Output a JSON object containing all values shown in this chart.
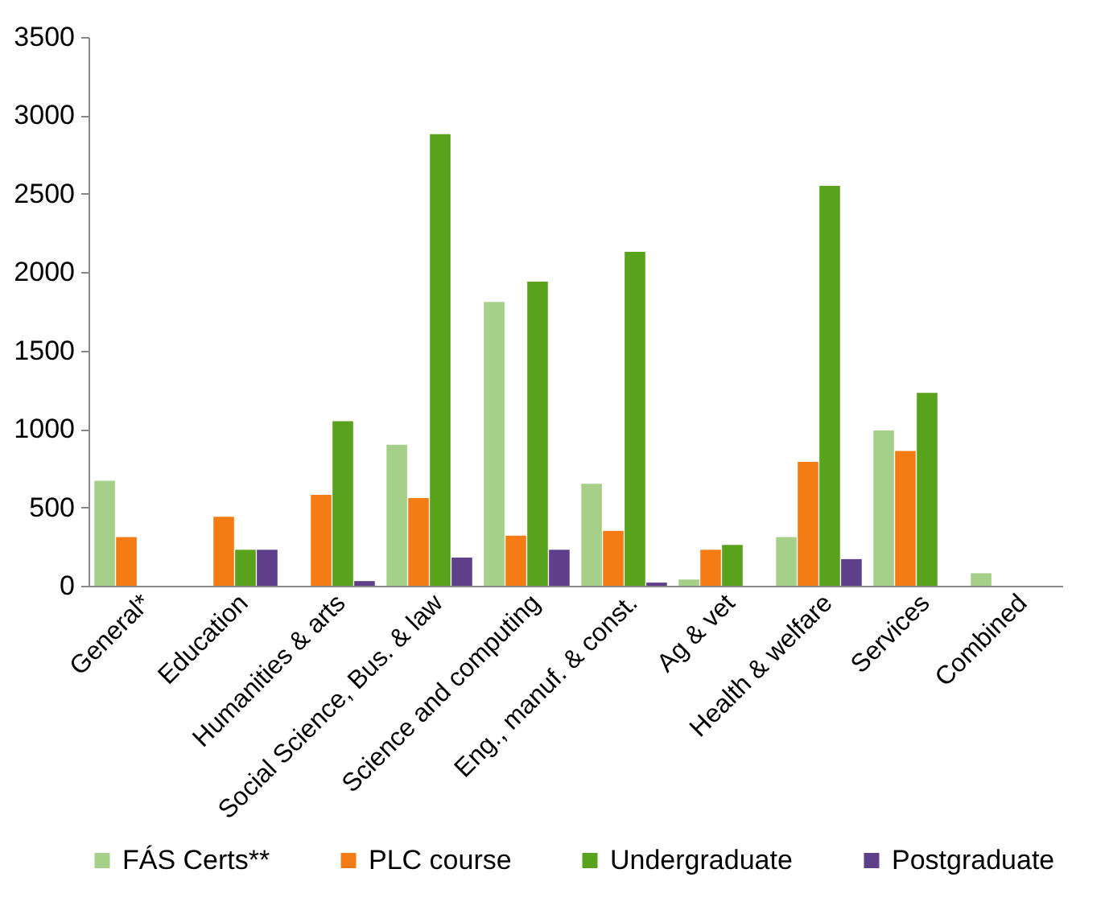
{
  "chart_data": {
    "type": "bar",
    "categories": [
      "General*",
      "Education",
      "Humanities & arts",
      "Social Science, Bus. & law",
      "Science and computing",
      "Eng., manuf. & const.",
      "Ag & vet",
      "Health & welfare",
      "Services",
      "Combined"
    ],
    "series": [
      {
        "name": "FÁS Certs**",
        "color": "#a6cf8a",
        "values": [
          670,
          0,
          0,
          900,
          1810,
          650,
          40,
          310,
          990,
          80
        ]
      },
      {
        "name": "PLC course",
        "color": "#f57c15",
        "values": [
          310,
          440,
          580,
          560,
          320,
          350,
          230,
          790,
          860,
          0
        ]
      },
      {
        "name": "Undergraduate",
        "color": "#58a21c",
        "values": [
          0,
          230,
          1050,
          2880,
          1940,
          2130,
          260,
          2550,
          1230,
          0
        ]
      },
      {
        "name": "Postgraduate",
        "color": "#5f3f8a",
        "values": [
          0,
          230,
          30,
          180,
          230,
          20,
          0,
          170,
          0,
          0
        ]
      }
    ],
    "ylim": [
      0,
      3500
    ],
    "yticks": [
      0,
      500,
      1000,
      1500,
      2000,
      2500,
      3000,
      3500
    ],
    "grid": false,
    "legend": "bottom"
  }
}
